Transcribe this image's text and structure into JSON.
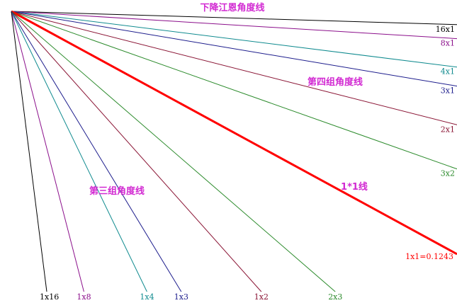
{
  "chart_data": {
    "type": "line",
    "title": "下降江恩角度线",
    "origin_label": "",
    "colors": {
      "black": "#000000",
      "purple": "#8b0f8b",
      "teal": "#0e8a8e",
      "navy": "#1c1c8c",
      "maroon": "#8a1434",
      "green": "#2a8a2a",
      "red": "#ff0000",
      "annotation": "#d22ad2"
    },
    "series": [
      {
        "name": "16x1",
        "color_key": "black",
        "angle_deg": 1.71,
        "side": "right"
      },
      {
        "name": "8x1",
        "color_key": "purple",
        "angle_deg": 3.51,
        "side": "right"
      },
      {
        "name": "4x1",
        "color_key": "teal",
        "angle_deg": 7.13,
        "side": "right"
      },
      {
        "name": "3x1",
        "color_key": "navy",
        "angle_deg": 9.53,
        "side": "right"
      },
      {
        "name": "2x1",
        "color_key": "maroon",
        "angle_deg": 14.3,
        "side": "right"
      },
      {
        "name": "3x2",
        "color_key": "green",
        "angle_deg": 19.5,
        "side": "right"
      },
      {
        "name": "1*1线",
        "color_key": "red",
        "angle_deg": 28.6,
        "side": "main"
      },
      {
        "name": "2x3",
        "color_key": "green",
        "angle_deg": 40.9,
        "side": "bottom"
      },
      {
        "name": "1x2",
        "color_key": "maroon",
        "angle_deg": 48.3,
        "side": "bottom"
      },
      {
        "name": "1x3",
        "color_key": "navy",
        "angle_deg": 58.8,
        "side": "bottom"
      },
      {
        "name": "1x4",
        "color_key": "teal",
        "angle_deg": 64.2,
        "side": "bottom"
      },
      {
        "name": "1x8",
        "color_key": "purple",
        "angle_deg": 75.5,
        "side": "bottom"
      },
      {
        "name": "1x16",
        "color_key": "black",
        "angle_deg": 82.8,
        "side": "bottom"
      }
    ],
    "annotations": [
      {
        "text": "第四组角度线",
        "color_key": "annotation"
      },
      {
        "text": "第三组角度线",
        "color_key": "annotation"
      },
      {
        "text": "1x1=0.1243",
        "color_key": "red"
      }
    ]
  }
}
